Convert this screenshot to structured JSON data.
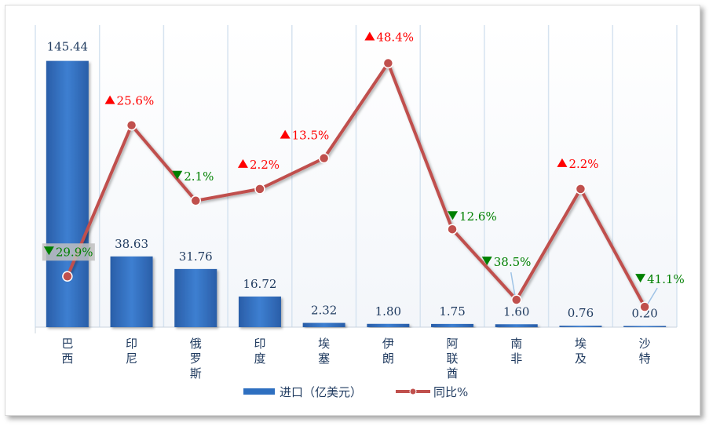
{
  "chart_data": {
    "type": "bar",
    "categories": [
      "巴西",
      "印尼",
      "俄罗斯",
      "印度",
      "埃塞",
      "伊朗",
      "阿联酋",
      "南非",
      "埃及",
      "沙特"
    ],
    "series": [
      {
        "name": "进口（亿美元）",
        "type": "bar",
        "values": [
          145.44,
          38.63,
          31.76,
          16.72,
          2.32,
          1.8,
          1.75,
          1.6,
          0.76,
          0.2
        ],
        "labels": [
          "145.44",
          "38.63",
          "31.76",
          "16.72",
          "2.32",
          "1.80",
          "1.75",
          "1.60",
          "0.76",
          "0.20"
        ]
      },
      {
        "name": "同比%",
        "type": "line",
        "values": [
          -29.9,
          25.6,
          -2.1,
          2.2,
          13.5,
          48.4,
          -12.6,
          -38.5,
          2.2,
          -41.1
        ],
        "labels": [
          "29.9%",
          "25.6%",
          "2.1%",
          "2.2%",
          "13.5%",
          "48.4%",
          "12.6%",
          "38.5%",
          "2.2%",
          "41.1%"
        ]
      }
    ],
    "ylim_bar": [
      0,
      150
    ],
    "ylim_line": [
      -50,
      50
    ],
    "up_color": "#ff0000",
    "down_color": "#008000",
    "bar_color": "#2e6fc0",
    "line_color": "#c0504d",
    "legend_position": "bottom"
  },
  "legend": {
    "bar_label": "进口（亿美元）",
    "line_label": "同比%"
  }
}
